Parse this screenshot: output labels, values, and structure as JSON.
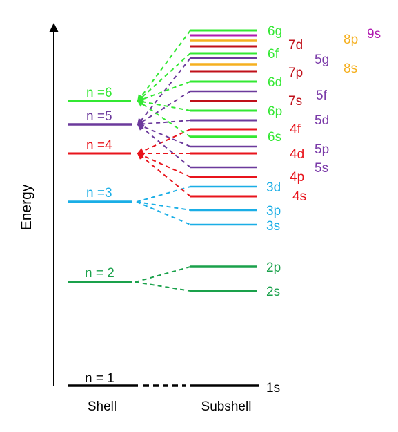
{
  "axis": {
    "label": "Energy"
  },
  "captions": {
    "shell": "Shell",
    "subshell": "Subshell"
  },
  "colors": {
    "n1": "#000000",
    "n2": "#1aa14b",
    "n3": "#1aaee6",
    "n4": "#e8141c",
    "n5": "#6c3a9c",
    "n6": "#33e833",
    "n7": "#c0101a",
    "n8": "#f5b020",
    "n9": "#b01ab0",
    "sub5": "#7a3aa8"
  },
  "shells": [
    {
      "id": "n1",
      "label": "n = 1",
      "color": "#000000"
    },
    {
      "id": "n2",
      "label": "n = 2",
      "color": "#1aa14b"
    },
    {
      "id": "n3",
      "label": "n =3",
      "color": "#1aaee6"
    },
    {
      "id": "n4",
      "label": "n =4",
      "color": "#e8141c"
    },
    {
      "id": "n5",
      "label": "n =5",
      "color": "#6c3a9c"
    },
    {
      "id": "n6",
      "label": "n =6",
      "color": "#33e833"
    }
  ],
  "subshell_labels": [
    {
      "id": "1s",
      "text": "1s",
      "color": "#000000"
    },
    {
      "id": "2s",
      "text": "2s",
      "color": "#1aa14b"
    },
    {
      "id": "2p",
      "text": "2p",
      "color": "#1aa14b"
    },
    {
      "id": "3s",
      "text": "3s",
      "color": "#1aaee6"
    },
    {
      "id": "3p",
      "text": "3p",
      "color": "#1aaee6"
    },
    {
      "id": "3d",
      "text": "3d",
      "color": "#1aaee6"
    },
    {
      "id": "4s",
      "text": "4s",
      "color": "#e8141c"
    },
    {
      "id": "4p",
      "text": "4p",
      "color": "#e8141c"
    },
    {
      "id": "4d",
      "text": "4d",
      "color": "#e8141c"
    },
    {
      "id": "4f",
      "text": "4f",
      "color": "#e8141c"
    },
    {
      "id": "5s",
      "text": "5s",
      "color": "#7a3aa8"
    },
    {
      "id": "5p",
      "text": "5p",
      "color": "#7a3aa8"
    },
    {
      "id": "5d",
      "text": "5d",
      "color": "#7a3aa8"
    },
    {
      "id": "5f",
      "text": "5f",
      "color": "#7a3aa8"
    },
    {
      "id": "5g",
      "text": "5g",
      "color": "#7a3aa8"
    },
    {
      "id": "6s",
      "text": "6s",
      "color": "#33e833"
    },
    {
      "id": "6p",
      "text": "6p",
      "color": "#33e833"
    },
    {
      "id": "6d",
      "text": "6d",
      "color": "#33e833"
    },
    {
      "id": "6f",
      "text": "6f",
      "color": "#33e833"
    },
    {
      "id": "6g",
      "text": "6g",
      "color": "#33e833"
    },
    {
      "id": "7s",
      "text": "7s",
      "color": "#c0101a"
    },
    {
      "id": "7p",
      "text": "7p",
      "color": "#c0101a"
    },
    {
      "id": "7d",
      "text": "7d",
      "color": "#c0101a"
    },
    {
      "id": "8s",
      "text": "8s",
      "color": "#f5b020"
    },
    {
      "id": "8p",
      "text": "8p",
      "color": "#f5b020"
    },
    {
      "id": "9s",
      "text": "9s",
      "color": "#b01ab0"
    }
  ]
}
